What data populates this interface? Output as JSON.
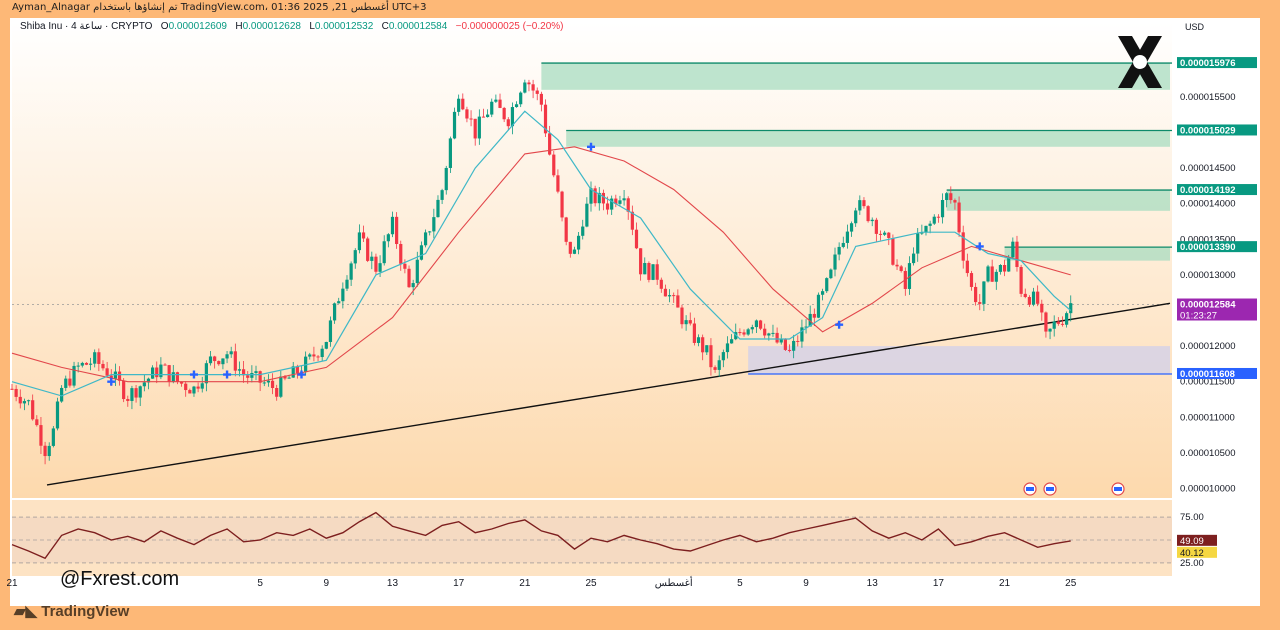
{
  "header": {
    "author_line": "Ayman_Alnagar تم إنشاؤها باستخدام TradingView.com، 01:36 2025 ,21 أغسطس UTC+3"
  },
  "info": {
    "symbol": "Shiba Inu · 4 ساعة · CRYPTO",
    "o_label": "O",
    "o_value": "0.000012609",
    "h_label": "H",
    "h_value": "0.000012628",
    "l_label": "L",
    "l_value": "0.000012532",
    "c_label": "C",
    "c_value": "0.000012584",
    "change": "−0.000000025 (−0.20%)"
  },
  "currency": "USD",
  "handle": "@Fxrest.com",
  "tv_brand": "TradingView",
  "colors": {
    "up": "#089981",
    "down": "#f23645",
    "ema_fast": "#3fb8c7",
    "ema_slow": "#e2474b",
    "zone": "#a8dcc0",
    "zone_border": "#0e8a6a",
    "support_zone": "#d6d2e6",
    "support_line": "#2962ff",
    "rsi": "#7d1f1f",
    "current_price_bg": "#9c27b0",
    "level_bg": "#089981"
  },
  "chart_data": [
    {
      "type": "candlestick",
      "title": "Shiba Inu · 4 ساعة · CRYPTO",
      "y_axis_ticks": [
        "0.000015500",
        "0.000015000",
        "0.000014500",
        "0.000014000",
        "0.000013500",
        "0.000013000",
        "0.000012500",
        "0.000012000",
        "0.000011500",
        "0.000011000",
        "0.000010500",
        "0.000010000"
      ],
      "y_axis_tick_values": [
        1.55e-05,
        1.5e-05,
        1.45e-05,
        1.4e-05,
        1.35e-05,
        1.3e-05,
        1.25e-05,
        1.2e-05,
        1.15e-05,
        1.1e-05,
        1.05e-05,
        1e-05
      ],
      "ylim": [
        9.95e-06,
        1.63e-05
      ],
      "x_axis_ticks": [
        "21",
        "5",
        "9",
        "13",
        "17",
        "21",
        "25",
        "أغسطس",
        "5",
        "9",
        "13",
        "17",
        "21",
        "25"
      ],
      "x_axis_tick_positions": [
        0,
        30,
        38,
        46,
        54,
        62,
        70,
        80,
        88,
        96,
        104,
        112,
        120,
        128
      ],
      "x_range": [
        0,
        140
      ],
      "price_path": [
        [
          0,
          1.14e-05
        ],
        [
          2,
          1.12e-05
        ],
        [
          4,
          1.055e-05
        ],
        [
          5,
          1.08e-05
        ],
        [
          6,
          1.14e-05
        ],
        [
          8,
          1.17e-05
        ],
        [
          10,
          1.18e-05
        ],
        [
          12,
          1.16e-05
        ],
        [
          14,
          1.13e-05
        ],
        [
          16,
          1.15e-05
        ],
        [
          18,
          1.17e-05
        ],
        [
          20,
          1.15e-05
        ],
        [
          22,
          1.14e-05
        ],
        [
          24,
          1.18e-05
        ],
        [
          26,
          1.19e-05
        ],
        [
          28,
          1.16e-05
        ],
        [
          30,
          1.15e-05
        ],
        [
          32,
          1.14e-05
        ],
        [
          34,
          1.16e-05
        ],
        [
          36,
          1.18e-05
        ],
        [
          38,
          1.21e-05
        ],
        [
          40,
          1.29e-05
        ],
        [
          42,
          1.35e-05
        ],
        [
          44,
          1.31e-05
        ],
        [
          46,
          1.37e-05
        ],
        [
          48,
          1.28e-05
        ],
        [
          50,
          1.35e-05
        ],
        [
          52,
          1.42e-05
        ],
        [
          54,
          1.56e-05
        ],
        [
          56,
          1.5e-05
        ],
        [
          58,
          1.54e-05
        ],
        [
          60,
          1.52e-05
        ],
        [
          62,
          1.58e-05
        ],
        [
          64,
          1.54e-05
        ],
        [
          65,
          1.47e-05
        ],
        [
          66,
          1.41e-05
        ],
        [
          67,
          1.34e-05
        ],
        [
          68,
          1.33e-05
        ],
        [
          69,
          1.38e-05
        ],
        [
          70,
          1.41e-05
        ],
        [
          72,
          1.4e-05
        ],
        [
          74,
          1.42e-05
        ],
        [
          75,
          1.37e-05
        ],
        [
          76,
          1.31e-05
        ],
        [
          78,
          1.3e-05
        ],
        [
          80,
          1.26e-05
        ],
        [
          82,
          1.22e-05
        ],
        [
          84,
          1.19e-05
        ],
        [
          85,
          1.16e-05
        ],
        [
          86,
          1.19e-05
        ],
        [
          88,
          1.22e-05
        ],
        [
          90,
          1.24e-05
        ],
        [
          92,
          1.21e-05
        ],
        [
          94,
          1.19e-05
        ],
        [
          96,
          1.23e-05
        ],
        [
          98,
          1.27e-05
        ],
        [
          99,
          1.3e-05
        ],
        [
          100,
          1.34e-05
        ],
        [
          102,
          1.4e-05
        ],
        [
          104,
          1.38e-05
        ],
        [
          106,
          1.34e-05
        ],
        [
          107,
          1.31e-05
        ],
        [
          108,
          1.28e-05
        ],
        [
          109,
          1.34e-05
        ],
        [
          111,
          1.37e-05
        ],
        [
          113,
          1.41e-05
        ],
        [
          114,
          1.4e-05
        ],
        [
          115,
          1.33e-05
        ],
        [
          116,
          1.28e-05
        ],
        [
          117,
          1.26e-05
        ],
        [
          118,
          1.3e-05
        ],
        [
          120,
          1.31e-05
        ],
        [
          121,
          1.34e-05
        ],
        [
          122,
          1.28e-05
        ],
        [
          123,
          1.27e-05
        ],
        [
          124,
          1.26e-05
        ],
        [
          125,
          1.21e-05
        ],
        [
          126,
          1.23e-05
        ],
        [
          127,
          1.24e-05
        ],
        [
          128,
          1.26e-05
        ]
      ],
      "ema_fast_path": [
        [
          0,
          1.15e-05
        ],
        [
          6,
          1.13e-05
        ],
        [
          12,
          1.16e-05
        ],
        [
          20,
          1.16e-05
        ],
        [
          30,
          1.16e-05
        ],
        [
          38,
          1.18e-05
        ],
        [
          44,
          1.3e-05
        ],
        [
          50,
          1.33e-05
        ],
        [
          56,
          1.45e-05
        ],
        [
          62,
          1.53e-05
        ],
        [
          66,
          1.49e-05
        ],
        [
          70,
          1.42e-05
        ],
        [
          76,
          1.38e-05
        ],
        [
          82,
          1.28e-05
        ],
        [
          88,
          1.21e-05
        ],
        [
          94,
          1.21e-05
        ],
        [
          98,
          1.24e-05
        ],
        [
          102,
          1.34e-05
        ],
        [
          106,
          1.35e-05
        ],
        [
          110,
          1.36e-05
        ],
        [
          114,
          1.36e-05
        ],
        [
          118,
          1.33e-05
        ],
        [
          122,
          1.32e-05
        ],
        [
          126,
          1.27e-05
        ],
        [
          128,
          1.25e-05
        ]
      ],
      "ema_slow_path": [
        [
          0,
          1.19e-05
        ],
        [
          6,
          1.17e-05
        ],
        [
          14,
          1.15e-05
        ],
        [
          22,
          1.15e-05
        ],
        [
          30,
          1.15e-05
        ],
        [
          38,
          1.17e-05
        ],
        [
          46,
          1.24e-05
        ],
        [
          54,
          1.36e-05
        ],
        [
          62,
          1.47e-05
        ],
        [
          68,
          1.48e-05
        ],
        [
          74,
          1.46e-05
        ],
        [
          80,
          1.42e-05
        ],
        [
          86,
          1.36e-05
        ],
        [
          92,
          1.28e-05
        ],
        [
          98,
          1.22e-05
        ],
        [
          104,
          1.26e-05
        ],
        [
          110,
          1.31e-05
        ],
        [
          116,
          1.34e-05
        ],
        [
          122,
          1.32e-05
        ],
        [
          128,
          1.3e-05
        ]
      ],
      "trendline": [
        [
          0,
          1.005e-05
        ],
        [
          140,
          1.26e-05
        ]
      ],
      "resistance_zones": [
        {
          "label": "0.000015976",
          "top": 1.5976e-05,
          "bottom": 1.56e-05,
          "x_start": 64
        },
        {
          "label": "0.000015029",
          "top": 1.5029e-05,
          "bottom": 1.48e-05,
          "x_start": 67
        },
        {
          "label": "0.000014192",
          "top": 1.4192e-05,
          "bottom": 1.39e-05,
          "x_start": 113
        },
        {
          "label": "0.000013390",
          "top": 1.339e-05,
          "bottom": 1.32e-05,
          "x_start": 120
        }
      ],
      "support_zone": {
        "label": "0.000011608",
        "top": 1.2e-05,
        "bottom": 1.1608e-05,
        "x_start": 89
      },
      "current_price": {
        "label": "0.000012584",
        "countdown": "01:23:27",
        "value": 1.2584e-05
      },
      "buy_markers": [
        [
          12,
          1.15e-05
        ],
        [
          22,
          1.16e-05
        ],
        [
          26,
          1.16e-05
        ],
        [
          35,
          1.16e-05
        ],
        [
          70,
          1.48e-05
        ],
        [
          100,
          1.23e-05
        ],
        [
          117,
          1.34e-05
        ]
      ]
    },
    {
      "type": "line",
      "title": "RSI",
      "y_axis_ticks": [
        "75.00",
        "25.00"
      ],
      "y_axis_tick_values": [
        75,
        25
      ],
      "ylim": [
        15,
        85
      ],
      "rsi_value_label": "49.09",
      "rsi_ma_label": "40.12",
      "rsi_value": 49.09,
      "rsi_ma": 40.12,
      "x": [
        0,
        2,
        4,
        6,
        8,
        10,
        12,
        14,
        16,
        18,
        20,
        22,
        24,
        26,
        28,
        30,
        32,
        34,
        36,
        38,
        40,
        42,
        44,
        46,
        48,
        50,
        52,
        54,
        56,
        58,
        60,
        62,
        64,
        66,
        68,
        70,
        72,
        74,
        76,
        78,
        80,
        82,
        84,
        86,
        88,
        90,
        92,
        94,
        96,
        98,
        100,
        102,
        104,
        106,
        108,
        110,
        112,
        114,
        116,
        118,
        120,
        122,
        124,
        126,
        128
      ],
      "values": [
        45,
        38,
        30,
        55,
        62,
        58,
        50,
        54,
        48,
        60,
        52,
        45,
        55,
        62,
        48,
        50,
        58,
        55,
        62,
        52,
        58,
        70,
        80,
        65,
        60,
        55,
        66,
        70,
        58,
        62,
        68,
        72,
        60,
        55,
        40,
        52,
        48,
        55,
        50,
        46,
        40,
        38,
        44,
        50,
        55,
        48,
        52,
        58,
        62,
        66,
        70,
        74,
        60,
        52,
        58,
        50,
        62,
        44,
        48,
        54,
        58,
        50,
        42,
        46,
        49
      ]
    }
  ]
}
